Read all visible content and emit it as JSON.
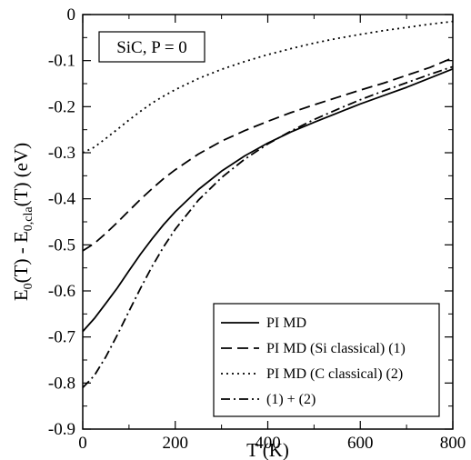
{
  "chart_data": {
    "type": "line",
    "xlabel": "T (K)",
    "ylabel_parts": {
      "E": "E",
      "sub0": "0",
      "mid": "(T) - E",
      "subcla": "0,cla",
      "tail": "(T)   (eV)"
    },
    "annotation": "SiC, P = 0",
    "xlim": [
      0,
      800
    ],
    "ylim": [
      -0.9,
      0
    ],
    "xticks": [
      0,
      200,
      400,
      600,
      800
    ],
    "xtick_labels": [
      "0",
      "200",
      "400",
      "600",
      "800"
    ],
    "yticks": [
      -0.9,
      -0.8,
      -0.7,
      -0.6,
      -0.5,
      -0.4,
      -0.3,
      -0.2,
      -0.1,
      0
    ],
    "ytick_labels": [
      "-0.9",
      "-0.8",
      "-0.7",
      "-0.6",
      "-0.5",
      "-0.4",
      "-0.3",
      "-0.2",
      "-0.1",
      "0"
    ],
    "grid": false,
    "legend_position": "bottom-right",
    "series": [
      {
        "name": "PI MD",
        "dash": "solid",
        "x": [
          0,
          25,
          50,
          75,
          100,
          125,
          150,
          175,
          200,
          250,
          300,
          350,
          400,
          450,
          500,
          550,
          600,
          650,
          700,
          750,
          800
        ],
        "y": [
          -0.688,
          -0.66,
          -0.627,
          -0.593,
          -0.556,
          -0.52,
          -0.487,
          -0.456,
          -0.428,
          -0.38,
          -0.34,
          -0.307,
          -0.279,
          -0.255,
          -0.234,
          -0.214,
          -0.194,
          -0.176,
          -0.158,
          -0.138,
          -0.118
        ]
      },
      {
        "name": "PI MD (Si classical)  (1)",
        "dash": "dashed",
        "x": [
          0,
          25,
          50,
          75,
          100,
          125,
          150,
          175,
          200,
          250,
          300,
          350,
          400,
          450,
          500,
          550,
          600,
          650,
          700,
          750,
          800
        ],
        "y": [
          -0.513,
          -0.497,
          -0.475,
          -0.451,
          -0.426,
          -0.401,
          -0.378,
          -0.356,
          -0.337,
          -0.303,
          -0.275,
          -0.252,
          -0.232,
          -0.213,
          -0.196,
          -0.18,
          -0.164,
          -0.149,
          -0.132,
          -0.115,
          -0.094
        ]
      },
      {
        "name": "PI MD (C  classical)  (2)",
        "dash": "dotted",
        "x": [
          0,
          25,
          50,
          75,
          100,
          125,
          150,
          175,
          200,
          250,
          300,
          350,
          400,
          450,
          500,
          550,
          600,
          650,
          700,
          750,
          800
        ],
        "y": [
          -0.3,
          -0.288,
          -0.269,
          -0.249,
          -0.229,
          -0.21,
          -0.192,
          -0.177,
          -0.163,
          -0.139,
          -0.119,
          -0.102,
          -0.087,
          -0.074,
          -0.062,
          -0.052,
          -0.043,
          -0.035,
          -0.028,
          -0.021,
          -0.015
        ]
      },
      {
        "name": "(1) + (2)",
        "dash": "dashdot",
        "x": [
          0,
          25,
          50,
          75,
          100,
          125,
          150,
          175,
          200,
          250,
          300,
          350,
          400,
          450,
          500,
          550,
          600,
          650,
          700,
          750,
          800
        ],
        "y": [
          -0.81,
          -0.784,
          -0.743,
          -0.695,
          -0.644,
          -0.594,
          -0.547,
          -0.504,
          -0.466,
          -0.403,
          -0.354,
          -0.314,
          -0.281,
          -0.253,
          -0.228,
          -0.206,
          -0.185,
          -0.166,
          -0.148,
          -0.13,
          -0.113
        ]
      }
    ]
  }
}
